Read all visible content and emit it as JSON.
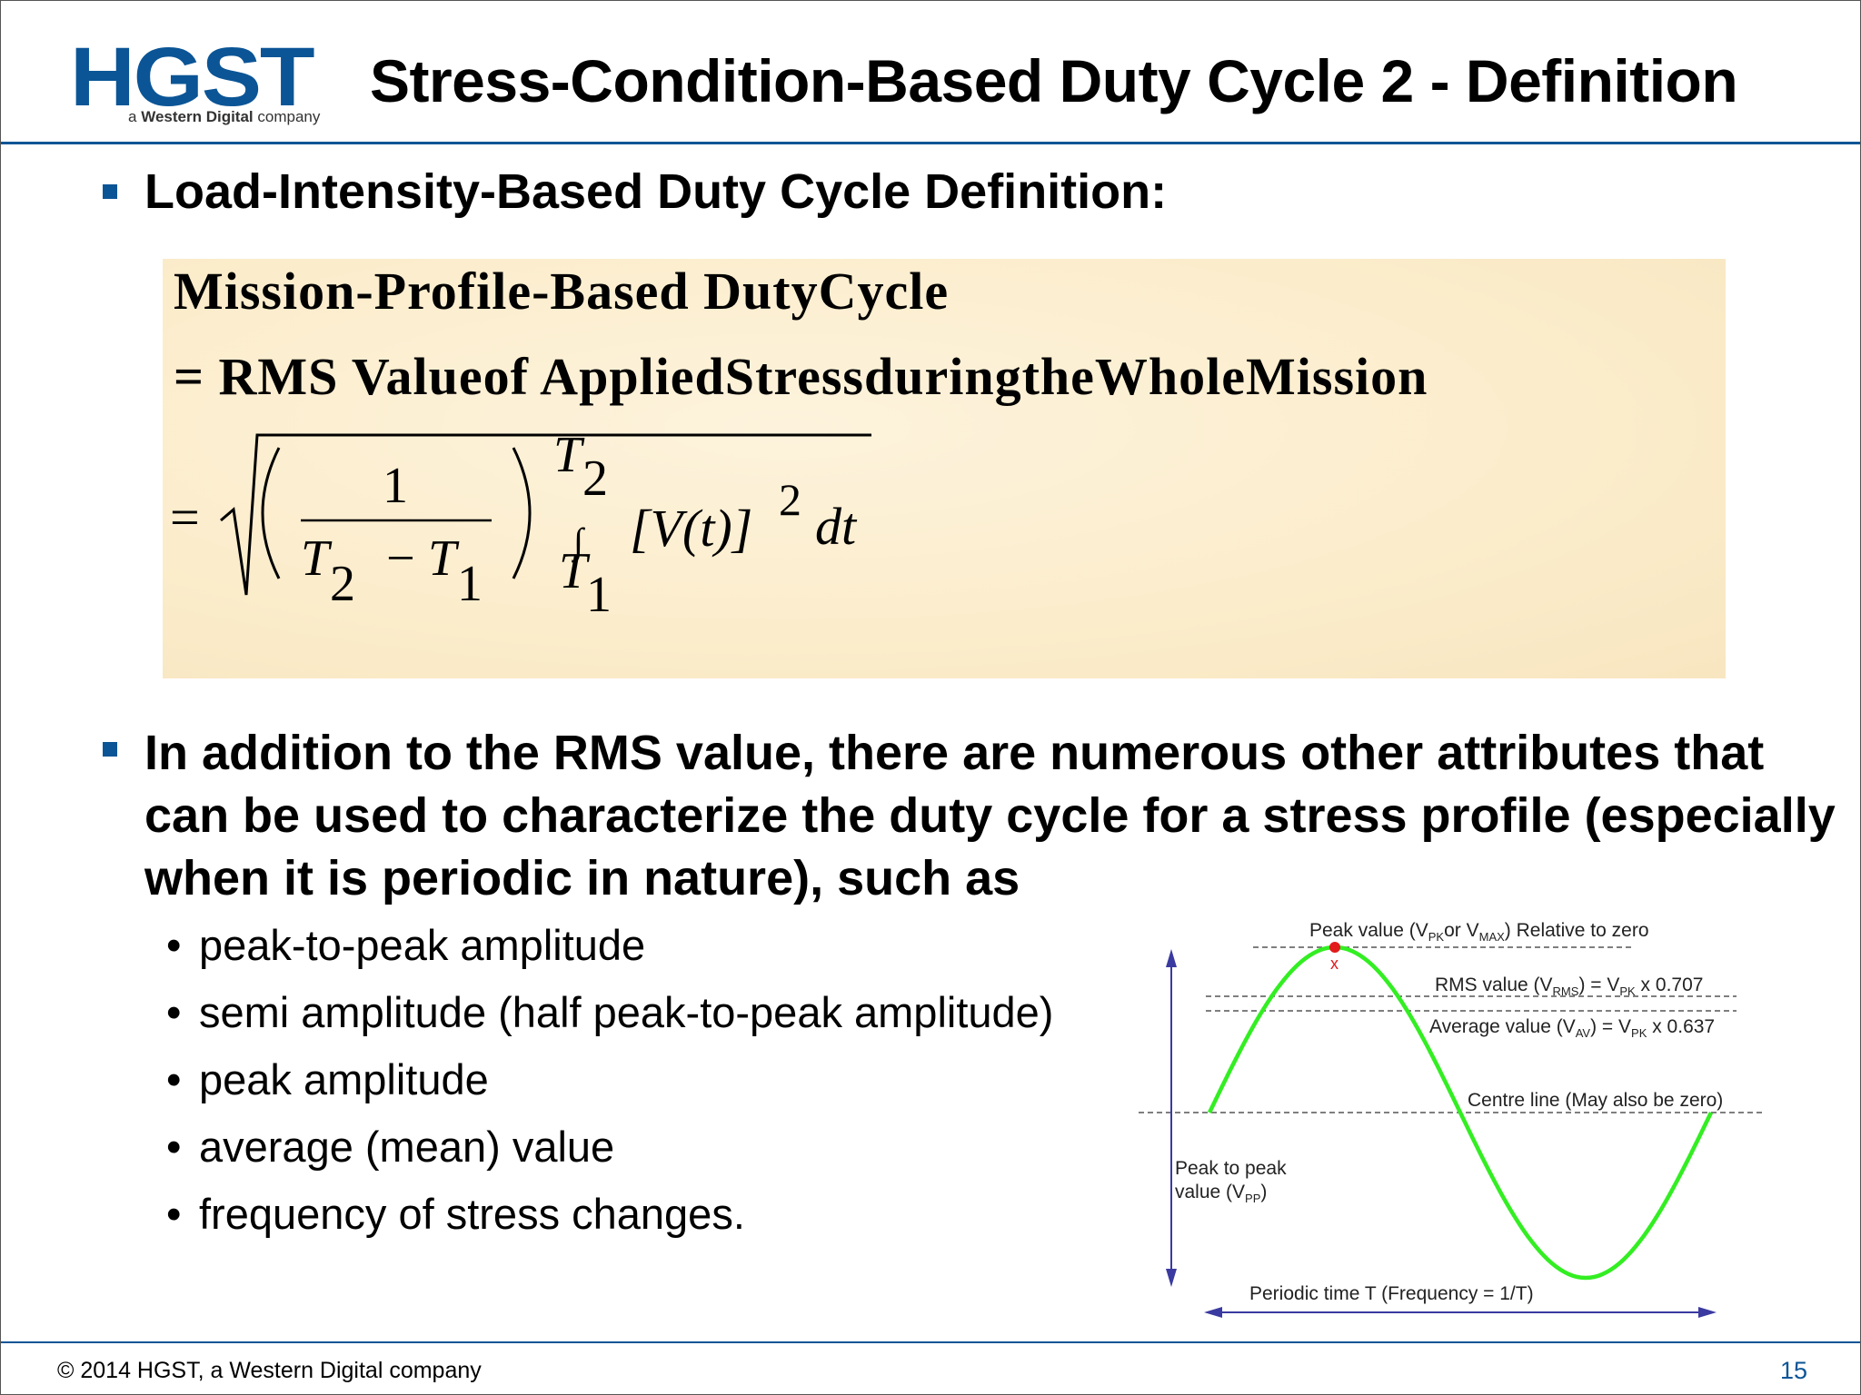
{
  "logo": {
    "main": "HGST",
    "sub_prefix": "a",
    "sub_bold": "Western Digital",
    "sub_suffix": "company"
  },
  "title": "Stress-Condition-Based Duty Cycle 2 - Definition",
  "bullet1": "Load-Intensity-Based Duty Cycle Definition:",
  "formula": {
    "line1": "Mission-Profile-Based DutyCycle",
    "line2": "= RMS Valueof AppliedStressduringtheWholeMission",
    "eq": "=",
    "num": "1",
    "T": "T",
    "sub2": "2",
    "sub1": "1",
    "minus": "−",
    "integral": "∫",
    "integrand": "[V(t)]",
    "power": "2",
    "dt": "dt"
  },
  "bullet2": "In addition to the RMS value, there are numerous other attributes that can be used to characterize the duty cycle for a stress profile (especially when it is periodic in nature), such as",
  "sub_bullets": [
    "peak-to-peak amplitude",
    "semi amplitude (half peak-to-peak amplitude)",
    "peak amplitude",
    "average (mean) value",
    "frequency of stress changes."
  ],
  "diagram": {
    "peak_label_a": "Peak value (V",
    "peak_sub1": "PK",
    "peak_label_b": "or V",
    "peak_sub2": "MAX",
    "peak_label_c": ") Relative to zero",
    "peak_marker": "x",
    "rms_a": "RMS value (V",
    "rms_sub": "RMS",
    "rms_b": ") = V",
    "rms_sub2": "PK",
    "rms_c": " x 0.707",
    "avg_a": "Average value (V",
    "avg_sub": "AV",
    "avg_b": ") = V",
    "avg_sub2": "PK",
    "avg_c": " x 0.637",
    "centre": "Centre line (May also be zero)",
    "p2p_a": "Peak to peak",
    "p2p_b": "value (V",
    "p2p_sub": "PP",
    "p2p_c": ")",
    "period": "Periodic time T (Frequency = 1/T)",
    "wave_color": "#33ee22",
    "arrow_color": "#3a3aa0"
  },
  "footer": {
    "copyright": "© 2014 HGST, a Western Digital company",
    "page": "15"
  }
}
